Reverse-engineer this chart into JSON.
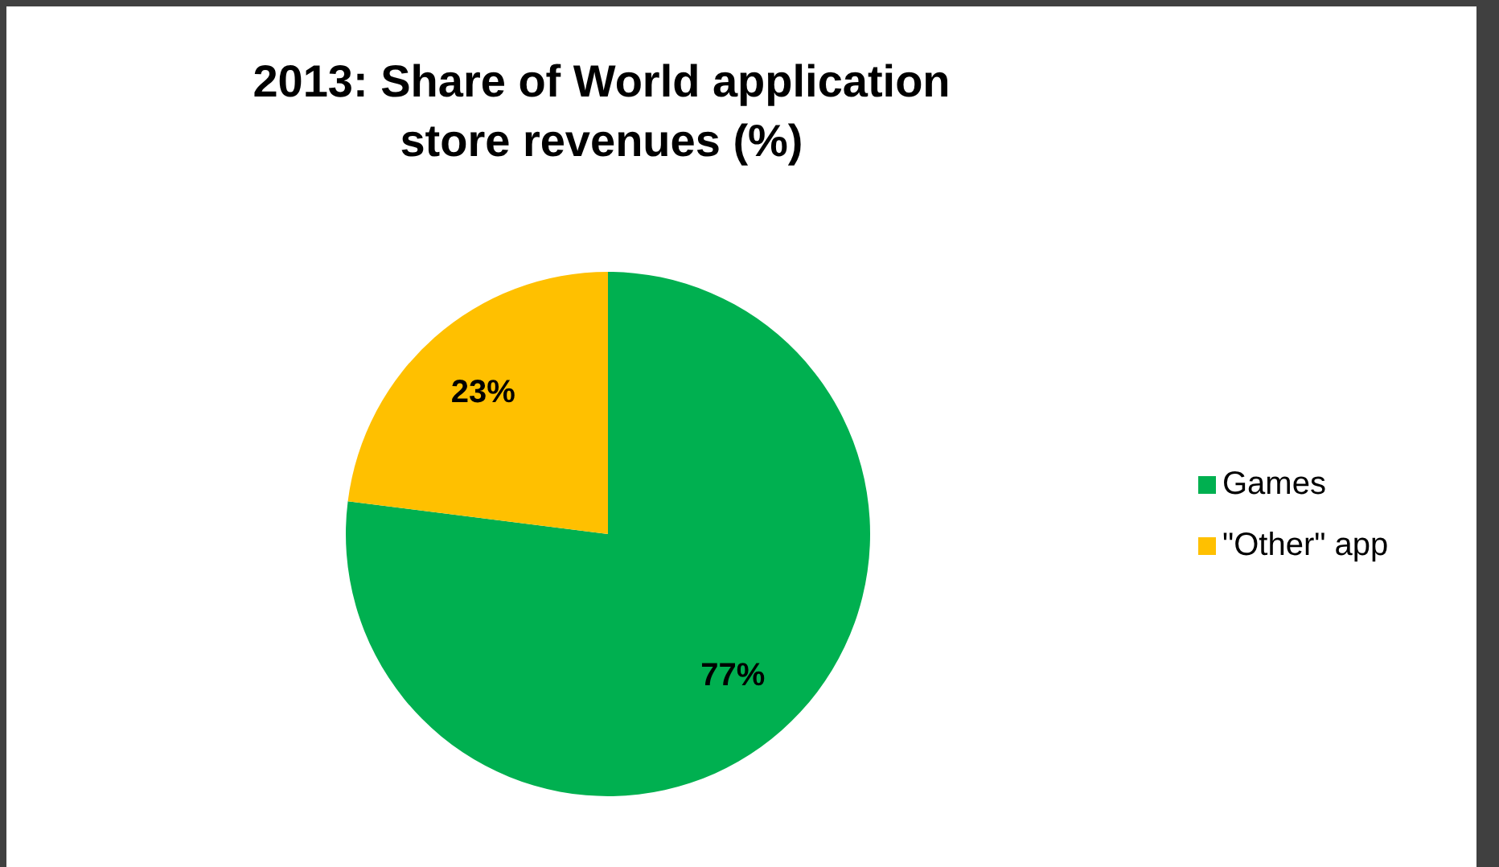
{
  "chart_data": {
    "type": "pie",
    "title": "2013: Share of World application store revenues (%)",
    "categories": [
      "Games",
      "\"Other\" app"
    ],
    "values": [
      77,
      23
    ],
    "colors": [
      "#00b050",
      "#ffc000"
    ],
    "value_labels": [
      "77%",
      "23%"
    ],
    "legend": "right"
  }
}
